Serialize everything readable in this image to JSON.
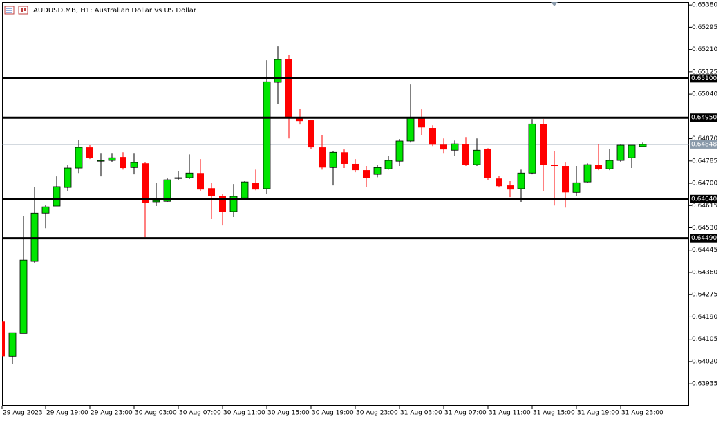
{
  "chart_data": {
    "type": "candlestick",
    "title": "AUDUSD.MB, H1:  Australian Dollar vs US Dollar",
    "up_color": "#00e600",
    "down_color": "#ff0000",
    "categories": [
      "29 Aug 2023",
      null,
      null,
      null,
      "29 Aug 19:00",
      null,
      null,
      null,
      "29 Aug 23:00",
      null,
      null,
      null,
      "30 Aug 03:00",
      null,
      null,
      null,
      "30 Aug 07:00",
      null,
      null,
      null,
      "30 Aug 11:00",
      null,
      null,
      null,
      "30 Aug 15:00",
      null,
      null,
      null,
      "30 Aug 19:00",
      null,
      null,
      null,
      "30 Aug 23:00",
      null,
      null,
      null,
      "31 Aug 03:00",
      null,
      null,
      null,
      "31 Aug 07:00",
      null,
      null,
      null,
      "31 Aug 11:00",
      null,
      null,
      null,
      "31 Aug 15:00",
      null,
      null,
      null,
      "31 Aug 19:00",
      null,
      null,
      null,
      "31 Aug 23:00",
      null,
      null
    ],
    "open": [
      0.64172,
      0.6404,
      0.64127,
      0.64402,
      0.64586,
      0.64613,
      0.64684,
      0.64758,
      0.64837,
      0.64784,
      0.64787,
      0.648,
      0.6476,
      0.64776,
      0.64629,
      0.64631,
      0.64718,
      0.64721,
      0.64739,
      0.64681,
      0.64652,
      0.64592,
      0.64644,
      0.64702,
      0.64679,
      0.65085,
      0.65174,
      0.64948,
      0.6494,
      0.64837,
      0.6476,
      0.64818,
      0.64774,
      0.6475,
      0.64734,
      0.64755,
      0.64784,
      0.64861,
      0.6495,
      0.64911,
      0.64847,
      0.64826,
      0.6485,
      0.64771,
      0.64832,
      0.64718,
      0.64692,
      0.64679,
      0.64739,
      0.64926,
      0.64771,
      0.64766,
      0.64665,
      0.64705,
      0.64771,
      0.64755,
      0.64787,
      0.64797,
      0.6484
    ],
    "high": [
      0.64172,
      0.6413,
      0.64576,
      0.64687,
      0.64618,
      0.64726,
      0.64771,
      0.64866,
      0.64845,
      0.64813,
      0.64813,
      0.64818,
      0.64813,
      0.64781,
      0.647,
      0.64721,
      0.64745,
      0.6481,
      0.64792,
      0.647,
      0.64658,
      0.64697,
      0.64708,
      0.64752,
      0.65169,
      0.65222,
      0.65188,
      0.64985,
      0.64942,
      0.64884,
      0.64824,
      0.64829,
      0.64792,
      0.64766,
      0.64771,
      0.64805,
      0.64869,
      0.65077,
      0.64982,
      0.64921,
      0.64871,
      0.64863,
      0.64876,
      0.64871,
      0.64834,
      0.64729,
      0.64708,
      0.64752,
      0.64945,
      0.64945,
      0.64824,
      0.64779,
      0.64766,
      0.64776,
      0.6485,
      0.64832,
      0.64847,
      0.64845,
      0.64855
    ],
    "low": [
      0.6404,
      0.64011,
      0.64127,
      0.64396,
      0.64528,
      0.64613,
      0.64671,
      0.64739,
      0.64792,
      0.64726,
      0.64781,
      0.64752,
      0.64734,
      0.64494,
      0.64613,
      0.64629,
      0.64713,
      0.64716,
      0.64671,
      0.64563,
      0.64539,
      0.64571,
      0.64636,
      0.64673,
      0.6466,
      0.65003,
      0.64871,
      0.64924,
      0.64832,
      0.64752,
      0.64692,
      0.64758,
      0.64742,
      0.64687,
      0.64723,
      0.64752,
      0.64766,
      0.64855,
      0.64884,
      0.64842,
      0.64813,
      0.64805,
      0.64766,
      0.64766,
      0.64713,
      0.64684,
      0.64647,
      0.64629,
      0.64734,
      0.64671,
      0.64615,
      0.64607,
      0.64652,
      0.647,
      0.6475,
      0.6475,
      0.64781,
      0.64758,
      0.6484
    ],
    "close": [
      0.6404,
      0.6413,
      0.64407,
      0.64586,
      0.6461,
      0.64687,
      0.64758,
      0.64837,
      0.64797,
      0.64787,
      0.64797,
      0.64758,
      0.64779,
      0.64626,
      0.64634,
      0.64713,
      0.64721,
      0.64739,
      0.64676,
      0.64652,
      0.64592,
      0.6465,
      0.64705,
      0.64676,
      0.65087,
      0.65172,
      0.64948,
      0.64937,
      0.64837,
      0.6476,
      0.64818,
      0.64774,
      0.6475,
      0.64721,
      0.6476,
      0.64787,
      0.64861,
      0.64948,
      0.64913,
      0.64847,
      0.64829,
      0.6485,
      0.64771,
      0.64826,
      0.64721,
      0.64689,
      0.64676,
      0.64739,
      0.64926,
      0.64771,
      0.64766,
      0.64665,
      0.64702,
      0.64771,
      0.64755,
      0.64787,
      0.64845,
      0.64845,
      0.64848
    ],
    "ylim": [
      0.63851,
      0.65391
    ],
    "yticks": [
      {
        "value": 0.6538,
        "label": "0.65380"
      },
      {
        "value": 0.65295,
        "label": "0.65295"
      },
      {
        "value": 0.6521,
        "label": "0.65210"
      },
      {
        "value": 0.65125,
        "label": "0.65125"
      },
      {
        "value": 0.6504,
        "label": "0.65040"
      },
      {
        "value": 0.6487,
        "label": "0.64870"
      },
      {
        "value": 0.64785,
        "label": "0.64785"
      },
      {
        "value": 0.647,
        "label": "0.64700"
      },
      {
        "value": 0.64615,
        "label": "0.64615"
      },
      {
        "value": 0.6453,
        "label": "0.64530"
      },
      {
        "value": 0.64445,
        "label": "0.64445"
      },
      {
        "value": 0.6436,
        "label": "0.64360"
      },
      {
        "value": 0.64275,
        "label": "0.64275"
      },
      {
        "value": 0.6419,
        "label": "0.64190"
      },
      {
        "value": 0.64105,
        "label": "0.64105"
      },
      {
        "value": 0.6402,
        "label": "0.64020"
      },
      {
        "value": 0.63935,
        "label": "0.63935"
      }
    ],
    "levels": [
      {
        "value": 0.651,
        "label": "0.65100"
      },
      {
        "value": 0.6495,
        "label": "0.64950"
      },
      {
        "value": 0.6464,
        "label": "0.64640"
      },
      {
        "value": 0.6449,
        "label": "0.64490"
      }
    ],
    "price_line": {
      "value": 0.64848,
      "label": "0.64848",
      "color": "#8a9aaa"
    }
  }
}
